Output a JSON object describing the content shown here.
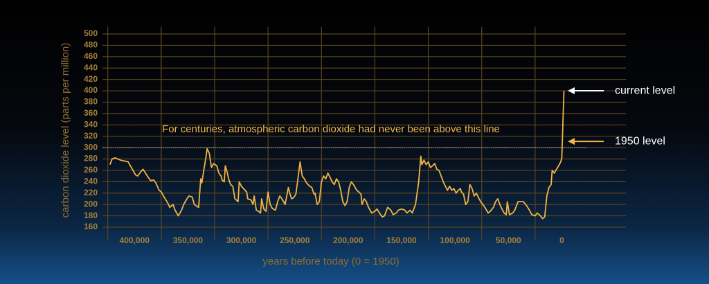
{
  "chart_data": {
    "type": "line",
    "ylabel": "carbon dioxide level (parts per million)",
    "xlabel": "years before today (0 = 1950)",
    "color": "#f2b544",
    "reference_line": {
      "value": 300,
      "text": "For centuries, atmospheric carbon dioxide had never been above this line"
    },
    "annotations": [
      {
        "text": "current level",
        "value": 400,
        "color": "#ffffff"
      },
      {
        "text": "1950 level",
        "value": 311,
        "color": "#f2b544"
      }
    ],
    "xlim": [
      430000,
      -60000
    ],
    "xticks": [
      {
        "value": 400000,
        "label": "400,000"
      },
      {
        "value": 350000,
        "label": "350,000"
      },
      {
        "value": 300000,
        "label": "300,000"
      },
      {
        "value": 250000,
        "label": "250,000"
      },
      {
        "value": 200000,
        "label": "200,000"
      },
      {
        "value": 150000,
        "label": "150,000"
      },
      {
        "value": 100000,
        "label": "100,000"
      },
      {
        "value": 50000,
        "label": "50,000"
      },
      0
    ],
    "ylim": [
      150,
      510
    ],
    "yticks": [
      160,
      180,
      200,
      220,
      240,
      260,
      280,
      300,
      320,
      340,
      360,
      380,
      400,
      420,
      440,
      460,
      480,
      500
    ],
    "grid": true,
    "x": [
      423000,
      421000,
      418000,
      413000,
      406000,
      403000,
      399000,
      397000,
      394000,
      392000,
      388000,
      385000,
      382000,
      380000,
      377000,
      375000,
      372000,
      369000,
      367000,
      364000,
      362000,
      359000,
      356000,
      354000,
      351000,
      349000,
      346000,
      344000,
      341000,
      340000,
      338000,
      337000,
      335000,
      333000,
      332000,
      330000,
      328000,
      326000,
      323000,
      321000,
      319000,
      318000,
      316000,
      315000,
      313000,
      312000,
      310000,
      308000,
      306000,
      303000,
      302000,
      300000,
      298000,
      295000,
      294000,
      291000,
      289000,
      288000,
      286000,
      284000,
      282000,
      281000,
      279000,
      277000,
      275000,
      273000,
      271000,
      268000,
      266000,
      264000,
      262000,
      259000,
      256000,
      255000,
      253000,
      251000,
      249000,
      247000,
      245000,
      243000,
      241000,
      239000,
      236000,
      234000,
      232000,
      231000,
      229000,
      227000,
      225000,
      223000,
      221000,
      219000,
      217000,
      215000,
      213000,
      211000,
      209000,
      207000,
      205000,
      203000,
      201000,
      199000,
      197000,
      195000,
      192000,
      190000,
      188000,
      187000,
      185000,
      183000,
      181000,
      178000,
      175000,
      173000,
      170000,
      168000,
      166000,
      163000,
      160000,
      158000,
      155000,
      153000,
      150000,
      147000,
      145000,
      142000,
      140000,
      137000,
      134000,
      132000,
      131000,
      129000,
      127000,
      125000,
      123000,
      121000,
      119000,
      117000,
      115000,
      113000,
      111000,
      109000,
      107000,
      105000,
      103000,
      101000,
      99000,
      97000,
      95000,
      94000,
      92000,
      90000,
      88000,
      86000,
      84000,
      82000,
      80000,
      78000,
      76000,
      74000,
      72000,
      69000,
      67000,
      64000,
      62000,
      60000,
      58000,
      56000,
      54000,
      52000,
      51000,
      49000,
      46000,
      44000,
      41000,
      38000,
      36000,
      33000,
      31000,
      28000,
      25000,
      23000,
      20000,
      18000,
      16000,
      14000,
      12000,
      10000,
      9000,
      7000,
      5000,
      3000,
      1000,
      0,
      -2000
    ],
    "values": [
      270,
      280,
      282,
      278,
      275,
      265,
      252,
      250,
      258,
      262,
      250,
      242,
      243,
      238,
      225,
      222,
      212,
      203,
      195,
      200,
      190,
      180,
      190,
      200,
      210,
      215,
      213,
      200,
      196,
      195,
      245,
      238,
      262,
      285,
      298,
      290,
      265,
      272,
      268,
      255,
      250,
      243,
      240,
      268,
      255,
      245,
      235,
      232,
      210,
      205,
      240,
      232,
      228,
      222,
      210,
      208,
      200,
      215,
      190,
      188,
      185,
      210,
      192,
      188,
      222,
      200,
      193,
      190,
      205,
      215,
      210,
      200,
      230,
      222,
      210,
      212,
      218,
      245,
      275,
      250,
      245,
      238,
      232,
      230,
      218,
      220,
      200,
      205,
      240,
      250,
      245,
      255,
      248,
      240,
      235,
      245,
      240,
      225,
      205,
      198,
      205,
      230,
      240,
      235,
      225,
      222,
      218,
      200,
      210,
      205,
      195,
      185,
      188,
      192,
      183,
      178,
      180,
      195,
      190,
      182,
      185,
      190,
      192,
      190,
      185,
      190,
      185,
      200,
      240,
      285,
      270,
      278,
      270,
      275,
      265,
      268,
      272,
      262,
      260,
      250,
      240,
      232,
      225,
      232,
      225,
      228,
      220,
      225,
      228,
      222,
      218,
      200,
      205,
      235,
      228,
      215,
      220,
      212,
      205,
      200,
      195,
      185,
      188,
      195,
      205,
      210,
      200,
      192,
      185,
      182,
      205,
      182,
      185,
      190,
      205,
      205,
      205,
      198,
      192,
      182,
      180,
      185,
      180,
      175,
      178,
      215,
      230,
      235,
      260,
      255,
      262,
      268,
      275,
      282,
      400
    ]
  }
}
